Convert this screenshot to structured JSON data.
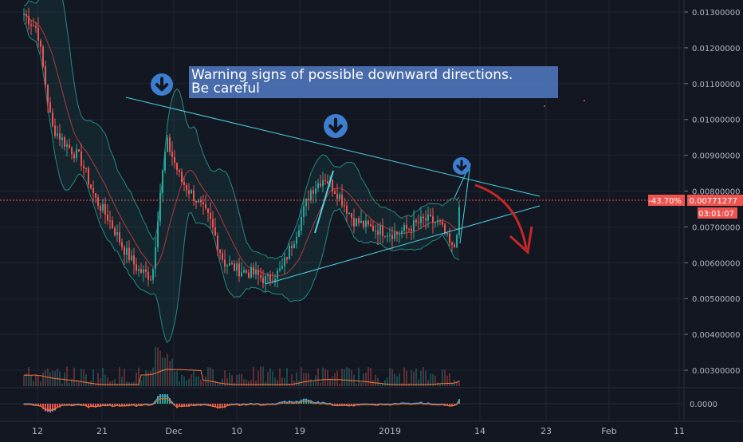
{
  "chart_data": {
    "type": "candlestick",
    "y_axis_ticks": [
      "0.01300000",
      "0.01200000",
      "0.01100000",
      "0.01000000",
      "0.00900000",
      "0.00800000",
      "0.00700000",
      "0.00600000",
      "0.00500000",
      "0.00400000",
      "0.00300000"
    ],
    "y_axis_tick_values": [
      0.013,
      0.012,
      0.011,
      0.01,
      0.009,
      0.008,
      0.007,
      0.006,
      0.005,
      0.004,
      0.003
    ],
    "oscillator_tick": "0.0000",
    "x_axis_ticks": [
      "12",
      "21",
      "Dec",
      "10",
      "19",
      "2019",
      "14",
      "23",
      "Feb",
      "11"
    ],
    "last_price_label": "0.00771277",
    "last_price_value": 0.00771277,
    "change_label": "-43.70%",
    "countdown_label": "03:01:07",
    "annotation": "Warning signs of possible downward directions.\nBe careful",
    "price_series": [
      {
        "date": "Nov 9",
        "close": 0.0132
      },
      {
        "date": "Nov 12",
        "close": 0.0125
      },
      {
        "date": "Nov 14",
        "close": 0.0098
      },
      {
        "date": "Nov 16",
        "close": 0.0093
      },
      {
        "date": "Nov 18",
        "close": 0.0089
      },
      {
        "date": "Nov 20",
        "close": 0.0078
      },
      {
        "date": "Nov 22",
        "close": 0.0072
      },
      {
        "date": "Nov 24",
        "close": 0.0064
      },
      {
        "date": "Nov 26",
        "close": 0.0058
      },
      {
        "date": "Nov 28",
        "close": 0.0056
      },
      {
        "date": "Nov 29",
        "close": 0.0078
      },
      {
        "date": "Nov 30",
        "close": 0.0094
      },
      {
        "date": "Dec 2",
        "close": 0.0083
      },
      {
        "date": "Dec 4",
        "close": 0.0078
      },
      {
        "date": "Dec 6",
        "close": 0.0072
      },
      {
        "date": "Dec 8",
        "close": 0.006
      },
      {
        "date": "Dec 10",
        "close": 0.0058
      },
      {
        "date": "Dec 12",
        "close": 0.0057
      },
      {
        "date": "Dec 14",
        "close": 0.0055
      },
      {
        "date": "Dec 16",
        "close": 0.0058
      },
      {
        "date": "Dec 18",
        "close": 0.0068
      },
      {
        "date": "Dec 20",
        "close": 0.008
      },
      {
        "date": "Dec 22",
        "close": 0.0084
      },
      {
        "date": "Dec 24",
        "close": 0.0079
      },
      {
        "date": "Dec 26",
        "close": 0.0072
      },
      {
        "date": "Dec 28",
        "close": 0.007
      },
      {
        "date": "Dec 30",
        "close": 0.0069
      },
      {
        "date": "Jan 1",
        "close": 0.0068
      },
      {
        "date": "Jan 3",
        "close": 0.007
      },
      {
        "date": "Jan 5",
        "close": 0.0072
      },
      {
        "date": "Jan 7",
        "close": 0.0071
      },
      {
        "date": "Jan 9",
        "close": 0.0063
      },
      {
        "date": "Jan 10",
        "close": 0.0077
      }
    ]
  }
}
